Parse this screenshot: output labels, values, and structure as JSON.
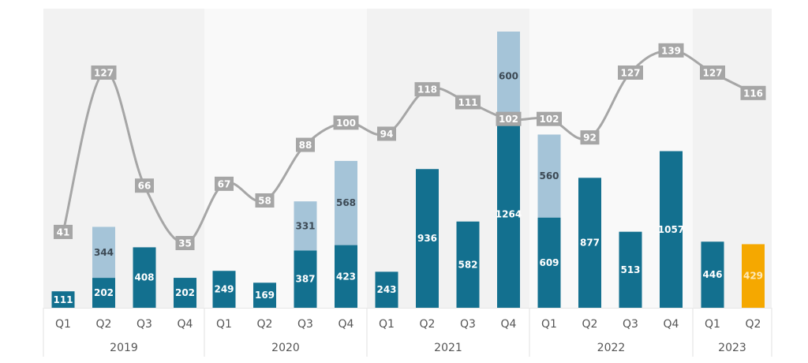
{
  "chart_data": {
    "type": "bar",
    "title": "",
    "xlabel": "",
    "ylabel": "",
    "grid": false,
    "legend": "none",
    "years": [
      {
        "label": "2019",
        "quarters": [
          "Q1",
          "Q2",
          "Q3",
          "Q4"
        ]
      },
      {
        "label": "2020",
        "quarters": [
          "Q1",
          "Q2",
          "Q3",
          "Q4"
        ]
      },
      {
        "label": "2021",
        "quarters": [
          "Q1",
          "Q2",
          "Q3",
          "Q4"
        ]
      },
      {
        "label": "2022",
        "quarters": [
          "Q1",
          "Q2",
          "Q3",
          "Q4"
        ]
      },
      {
        "label": "2023",
        "quarters": [
          "Q1",
          "Q2"
        ]
      }
    ],
    "categories": [
      "2019 Q1",
      "2019 Q2",
      "2019 Q3",
      "2019 Q4",
      "2020 Q1",
      "2020 Q2",
      "2020 Q3",
      "2020 Q4",
      "2021 Q1",
      "2021 Q2",
      "2021 Q3",
      "2021 Q4",
      "2022 Q1",
      "2022 Q2",
      "2022 Q3",
      "2022 Q4",
      "2023 Q1",
      "2023 Q2"
    ],
    "series": [
      {
        "name": "primary",
        "kind": "bar-stack-base",
        "color": "#13708f",
        "values": [
          111,
          202,
          408,
          202,
          249,
          169,
          387,
          423,
          243,
          936,
          582,
          1264,
          609,
          877,
          513,
          1057,
          446,
          429
        ]
      },
      {
        "name": "secondary",
        "kind": "bar-stack-top",
        "color": "#a5c4d8",
        "values": [
          null,
          344,
          null,
          null,
          null,
          null,
          331,
          568,
          null,
          null,
          null,
          600,
          560,
          null,
          null,
          null,
          null,
          null
        ]
      },
      {
        "name": "line",
        "kind": "line",
        "color": "#a6a6a6",
        "values": [
          41,
          127,
          66,
          35,
          67,
          58,
          88,
          100,
          94,
          118,
          111,
          102,
          102,
          92,
          127,
          139,
          127,
          116
        ]
      }
    ],
    "highlight": {
      "index": 17,
      "color": "#f5a800"
    },
    "bar_ylim": [
      0,
      1864
    ],
    "line_ylim": [
      35,
      139
    ]
  },
  "colors": {
    "panel_dark": "#f2f2f2",
    "panel_light": "#f9f9f9",
    "bar_primary": "#13708f",
    "bar_secondary": "#a5c4d8",
    "bar_highlight": "#f5a800",
    "line": "#a6a6a6",
    "label_dark_text": "#3d4a55",
    "axis_text": "#555555"
  }
}
